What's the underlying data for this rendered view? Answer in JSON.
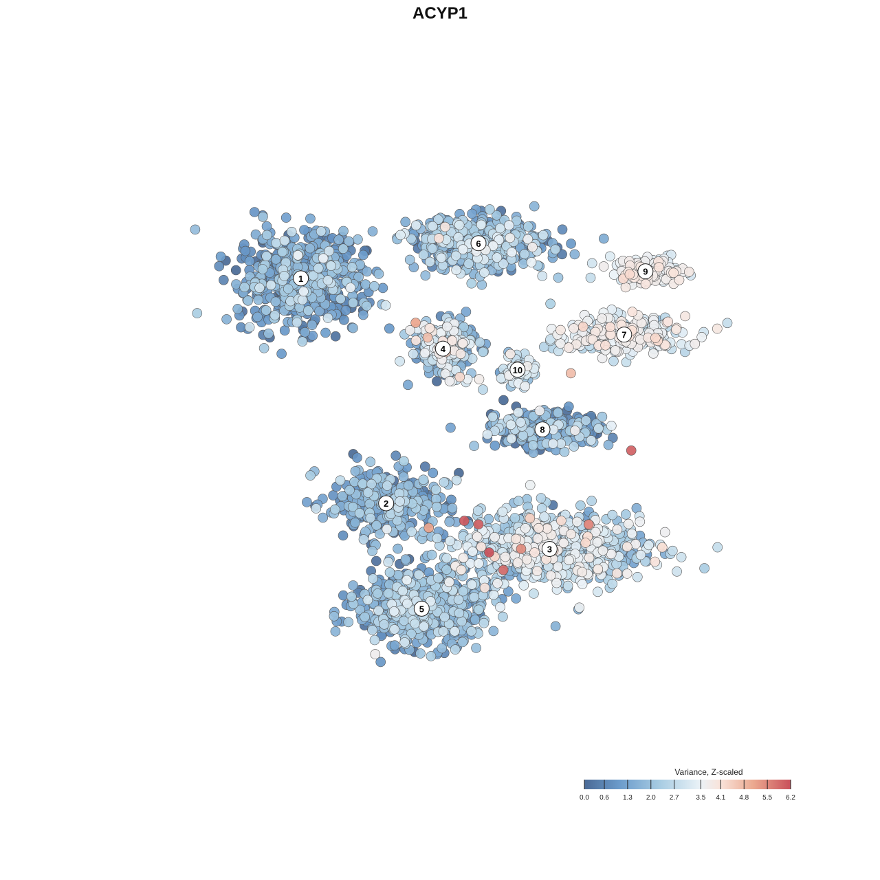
{
  "chart_data": {
    "type": "scatter",
    "title": "ACYP1",
    "xlabel": "",
    "ylabel": "",
    "grid": false,
    "legend": {
      "title": "Variance, Z-scaled",
      "placement": "bottom-right",
      "ticks": [
        "0.0",
        "0.6",
        "1.3",
        "2.0",
        "2.7",
        "3.5",
        "4.1",
        "4.8",
        "5.5",
        "6.2"
      ],
      "range": [
        0.0,
        6.2
      ]
    },
    "colorscale": [
      "#4a6a96",
      "#6b9bcb",
      "#a9cde3",
      "#eaf2f7",
      "#f9e3da",
      "#eba88f",
      "#c9505a"
    ],
    "point_style": {
      "stroke": "#555555",
      "opacity": 0.92
    },
    "x": [
      -9,
      9
    ],
    "y": [
      -9,
      9
    ],
    "clusters": [
      {
        "label": "1",
        "x": -4.4,
        "y": 4.6,
        "spread": [
          1.6,
          1.2
        ],
        "count": 620,
        "value_mean": 1.1,
        "value_sd": 0.7
      },
      {
        "label": "6",
        "x": 0.6,
        "y": 5.6,
        "spread": [
          1.8,
          0.7
        ],
        "count": 460,
        "value_mean": 1.6,
        "value_sd": 0.7
      },
      {
        "label": "9",
        "x": 5.3,
        "y": 4.8,
        "spread": [
          0.9,
          0.35
        ],
        "count": 150,
        "value_mean": 3.3,
        "value_sd": 0.4
      },
      {
        "label": "7",
        "x": 4.7,
        "y": 3.0,
        "spread": [
          1.6,
          0.5
        ],
        "count": 280,
        "value_mean": 3.0,
        "value_sd": 0.5
      },
      {
        "label": "4",
        "x": -0.4,
        "y": 2.6,
        "spread": [
          0.8,
          0.7
        ],
        "count": 280,
        "value_mean": 2.0,
        "value_sd": 1.0
      },
      {
        "label": "10",
        "x": 1.7,
        "y": 2.0,
        "spread": [
          0.4,
          0.4
        ],
        "count": 70,
        "value_mean": 2.4,
        "value_sd": 0.6
      },
      {
        "label": "8",
        "x": 2.4,
        "y": 0.3,
        "spread": [
          1.6,
          0.5
        ],
        "count": 260,
        "value_mean": 1.2,
        "value_sd": 0.9
      },
      {
        "label": "2",
        "x": -2.0,
        "y": -1.8,
        "spread": [
          1.5,
          0.9
        ],
        "count": 330,
        "value_mean": 1.2,
        "value_sd": 0.7
      },
      {
        "label": "3",
        "x": 2.6,
        "y": -3.1,
        "spread": [
          2.4,
          1.0
        ],
        "count": 700,
        "value_mean": 2.3,
        "value_sd": 0.8
      },
      {
        "label": "5",
        "x": -1.0,
        "y": -4.8,
        "spread": [
          1.6,
          1.0
        ],
        "count": 540,
        "value_mean": 1.5,
        "value_sd": 0.6
      }
    ],
    "hotspots": [
      {
        "x": 0.6,
        "y": -2.4,
        "value": 6.0
      },
      {
        "x": 0.2,
        "y": -2.3,
        "value": 6.1
      },
      {
        "x": 0.9,
        "y": -3.2,
        "value": 6.2
      },
      {
        "x": 1.3,
        "y": -3.7,
        "value": 5.9
      },
      {
        "x": 1.8,
        "y": -3.1,
        "value": 5.5
      },
      {
        "x": 3.7,
        "y": -2.4,
        "value": 5.6
      },
      {
        "x": 4.9,
        "y": -0.3,
        "value": 6.0
      },
      {
        "x": -0.8,
        "y": -2.5,
        "value": 5.2
      },
      {
        "x": 3.2,
        "y": 1.9,
        "value": 4.8
      }
    ]
  }
}
